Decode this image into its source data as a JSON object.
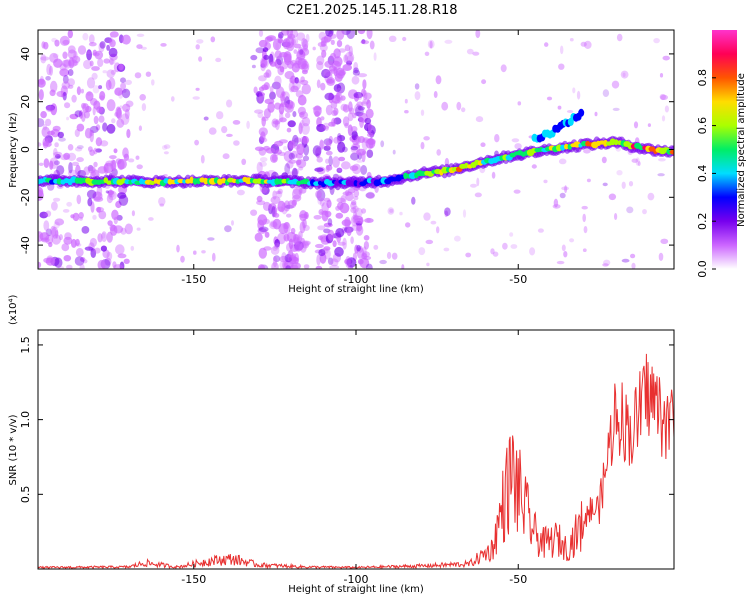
{
  "title": "C2E1.2025.145.11.28.R18",
  "chart_data": [
    {
      "type": "heatmap",
      "xlabel": "Height of straight line (km)",
      "ylabel": "Frequency (Hz)",
      "xlim": [
        -198,
        -2
      ],
      "ylim": [
        -50,
        50
      ],
      "xticks": [
        -150,
        -100,
        -50
      ],
      "yticks": [
        -40,
        -20,
        0,
        20,
        40
      ],
      "colorbar": {
        "label": "Normalized spectral amplitude",
        "range": [
          0,
          1
        ],
        "ticks": [
          0.0,
          0.2,
          0.4,
          0.6,
          0.8
        ],
        "tick_labels": [
          "0.0",
          "0.2",
          "0.4",
          "0.6",
          "0.8"
        ],
        "colormap": [
          "#ffffff",
          "#cc66ff",
          "#7700ee",
          "#0000ff",
          "#00ddff",
          "#00ee66",
          "#aaff00",
          "#ffdd00",
          "#ff5500",
          "#ff0055",
          "#ff33cc"
        ]
      },
      "signal_track": {
        "x": [
          -198,
          -160,
          -130,
          -110,
          -100,
          -90,
          -80,
          -72,
          -60,
          -50,
          -40,
          -30,
          -20,
          -10,
          -2
        ],
        "y": [
          -13,
          -13.5,
          -13,
          -14,
          -14,
          -13,
          -10,
          -9,
          -5,
          -2,
          0,
          2,
          3,
          0,
          -1
        ],
        "amplitude": [
          0.5,
          0.65,
          0.7,
          0.4,
          0.3,
          0.4,
          0.55,
          0.8,
          0.6,
          0.55,
          0.6,
          0.7,
          0.85,
          0.9,
          0.75
        ]
      },
      "upper_branch": {
        "x": [
          -45,
          -40,
          -35,
          -30
        ],
        "y": [
          4,
          7,
          11,
          16
        ]
      },
      "noise_bands_x": [
        [
          -198,
          -170
        ],
        [
          -130,
          -115
        ],
        [
          -112,
          -95
        ]
      ]
    },
    {
      "type": "line",
      "xlabel": "Height of straight line (km)",
      "ylabel": "SNR (10 * v/v)",
      "yexp_label": "(x10⁴)",
      "xlim": [
        -198,
        -2
      ],
      "ylim": [
        0,
        1.6
      ],
      "xticks": [
        -150,
        -100,
        -50
      ],
      "yticks": [
        0.5,
        1.0,
        1.5
      ],
      "ytick_labels": [
        "0.5",
        "1.0",
        "1.5"
      ],
      "color": "#e83030",
      "envelope": {
        "x": [
          -198,
          -170,
          -165,
          -155,
          -145,
          -138,
          -130,
          -115,
          -100,
          -80,
          -65,
          -58,
          -55,
          -52,
          -48,
          -45,
          -42,
          -38,
          -35,
          -30,
          -25,
          -20,
          -15,
          -10,
          -5,
          -2
        ],
        "y": [
          0.015,
          0.02,
          0.06,
          0.02,
          0.08,
          0.1,
          0.04,
          0.02,
          0.015,
          0.03,
          0.05,
          0.2,
          0.6,
          0.95,
          0.6,
          0.35,
          0.25,
          0.3,
          0.2,
          0.45,
          0.5,
          1.3,
          1.1,
          1.45,
          1.2,
          1.2
        ]
      }
    }
  ]
}
